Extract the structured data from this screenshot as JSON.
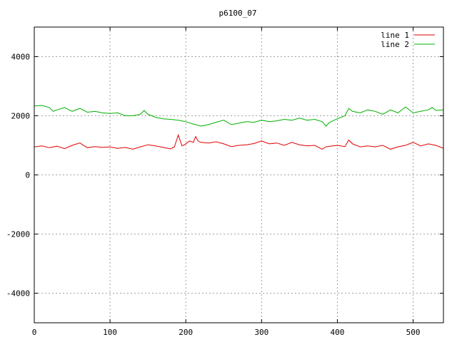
{
  "chart_data": {
    "type": "line",
    "title": "p6100_07",
    "xlabel": "",
    "ylabel": "",
    "xlim": [
      0,
      540
    ],
    "ylim": [
      -5000,
      5000
    ],
    "xticks": [
      0,
      100,
      200,
      300,
      400,
      500
    ],
    "yticks": [
      -4000,
      -2000,
      0,
      2000,
      4000
    ],
    "grid": true,
    "legend_position": "top-right",
    "series": [
      {
        "name": "line 1",
        "color": "#e00000",
        "x": [
          0,
          10,
          20,
          30,
          40,
          50,
          60,
          70,
          80,
          90,
          100,
          110,
          120,
          130,
          140,
          150,
          160,
          170,
          180,
          185,
          190,
          195,
          200,
          205,
          210,
          213,
          216,
          220,
          230,
          240,
          250,
          260,
          270,
          280,
          290,
          300,
          310,
          320,
          330,
          340,
          350,
          360,
          370,
          380,
          385,
          390,
          400,
          410,
          415,
          420,
          430,
          440,
          450,
          460,
          470,
          480,
          490,
          500,
          510,
          520,
          530,
          540
        ],
        "y": [
          950,
          980,
          920,
          970,
          890,
          1000,
          1080,
          920,
          960,
          930,
          950,
          900,
          930,
          870,
          950,
          1020,
          980,
          930,
          880,
          950,
          1350,
          980,
          1050,
          1150,
          1100,
          1300,
          1150,
          1100,
          1080,
          1120,
          1050,
          960,
          1000,
          1020,
          1060,
          1150,
          1050,
          1080,
          1000,
          1100,
          1020,
          980,
          1000,
          870,
          950,
          970,
          1000,
          960,
          1180,
          1050,
          950,
          980,
          950,
          1000,
          870,
          950,
          1000,
          1100,
          980,
          1050,
          1000,
          900
        ]
      },
      {
        "name": "line 2",
        "color": "#00b000",
        "x": [
          0,
          10,
          20,
          25,
          30,
          40,
          50,
          60,
          70,
          80,
          90,
          100,
          110,
          120,
          130,
          140,
          145,
          150,
          160,
          170,
          180,
          190,
          200,
          210,
          220,
          230,
          240,
          250,
          260,
          270,
          280,
          290,
          300,
          310,
          320,
          330,
          340,
          350,
          360,
          370,
          380,
          385,
          390,
          400,
          410,
          415,
          420,
          430,
          440,
          450,
          460,
          470,
          480,
          490,
          500,
          510,
          520,
          525,
          530,
          540
        ],
        "y": [
          2330,
          2350,
          2280,
          2150,
          2200,
          2280,
          2150,
          2250,
          2120,
          2150,
          2100,
          2080,
          2100,
          2000,
          2000,
          2050,
          2180,
          2050,
          1950,
          1900,
          1880,
          1850,
          1800,
          1720,
          1650,
          1700,
          1780,
          1850,
          1700,
          1750,
          1800,
          1780,
          1850,
          1800,
          1830,
          1880,
          1850,
          1920,
          1850,
          1880,
          1800,
          1650,
          1780,
          1900,
          2000,
          2250,
          2150,
          2100,
          2200,
          2150,
          2050,
          2200,
          2100,
          2300,
          2100,
          2150,
          2200,
          2280,
          2180,
          2200
        ]
      }
    ]
  }
}
